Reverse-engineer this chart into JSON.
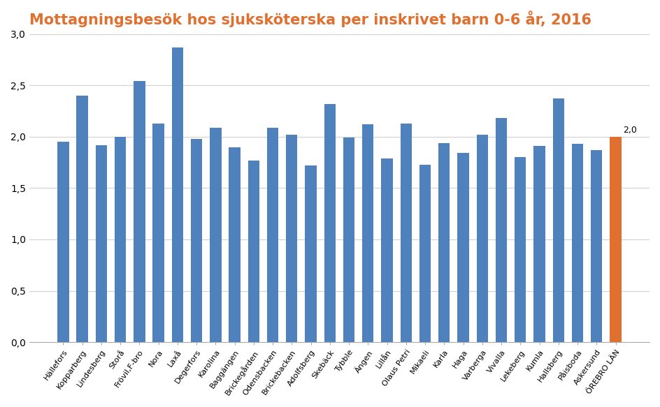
{
  "title": "Mottagningsbesök hos sjuksköterska per inskrivet barn 0-6 år, 2016",
  "categories": [
    "Hällefors",
    "Kopparberg",
    "Lindesberg",
    "Storå",
    "Frövil,F-bro",
    "Nora",
    "Laxå",
    "Degerfors",
    "Karolina",
    "Baggängen",
    "Brickegården",
    "Odensbacken",
    "Brickebacken",
    "Adolfsberg",
    "Skebäck",
    "Tybble",
    "Ängen",
    "Lillån",
    "Olaus Petri",
    "Mikaeli",
    "Karla",
    "Haga",
    "Varberga",
    "Vivalla",
    "Lekeberg",
    "Kumla",
    "Hallsberg",
    "Påisboda",
    "Askersund",
    "ÖREBRO LÄN"
  ],
  "values": [
    1.95,
    2.4,
    1.92,
    2.0,
    2.54,
    2.13,
    2.87,
    1.98,
    2.09,
    1.9,
    1.77,
    2.09,
    2.02,
    1.72,
    2.32,
    1.99,
    2.12,
    1.79,
    2.13,
    1.73,
    1.94,
    1.84,
    2.02,
    2.18,
    1.8,
    1.91,
    2.37,
    1.93,
    1.87,
    2.0
  ],
  "bar_color_blue": "#4F81BD",
  "bar_color_orange": "#E07030",
  "last_bar_label": "2,0",
  "ylim": [
    0,
    3.0
  ],
  "yticks": [
    0.0,
    0.5,
    1.0,
    1.5,
    2.0,
    2.5,
    3.0
  ],
  "ytick_labels": [
    "0,0",
    "0,5",
    "1,0",
    "1,5",
    "2,0",
    "2,5",
    "3,0"
  ],
  "title_color": "#E07030",
  "title_fontsize": 15,
  "bg_color": "#FFFFFF",
  "grid_color": "#D0D0D0"
}
